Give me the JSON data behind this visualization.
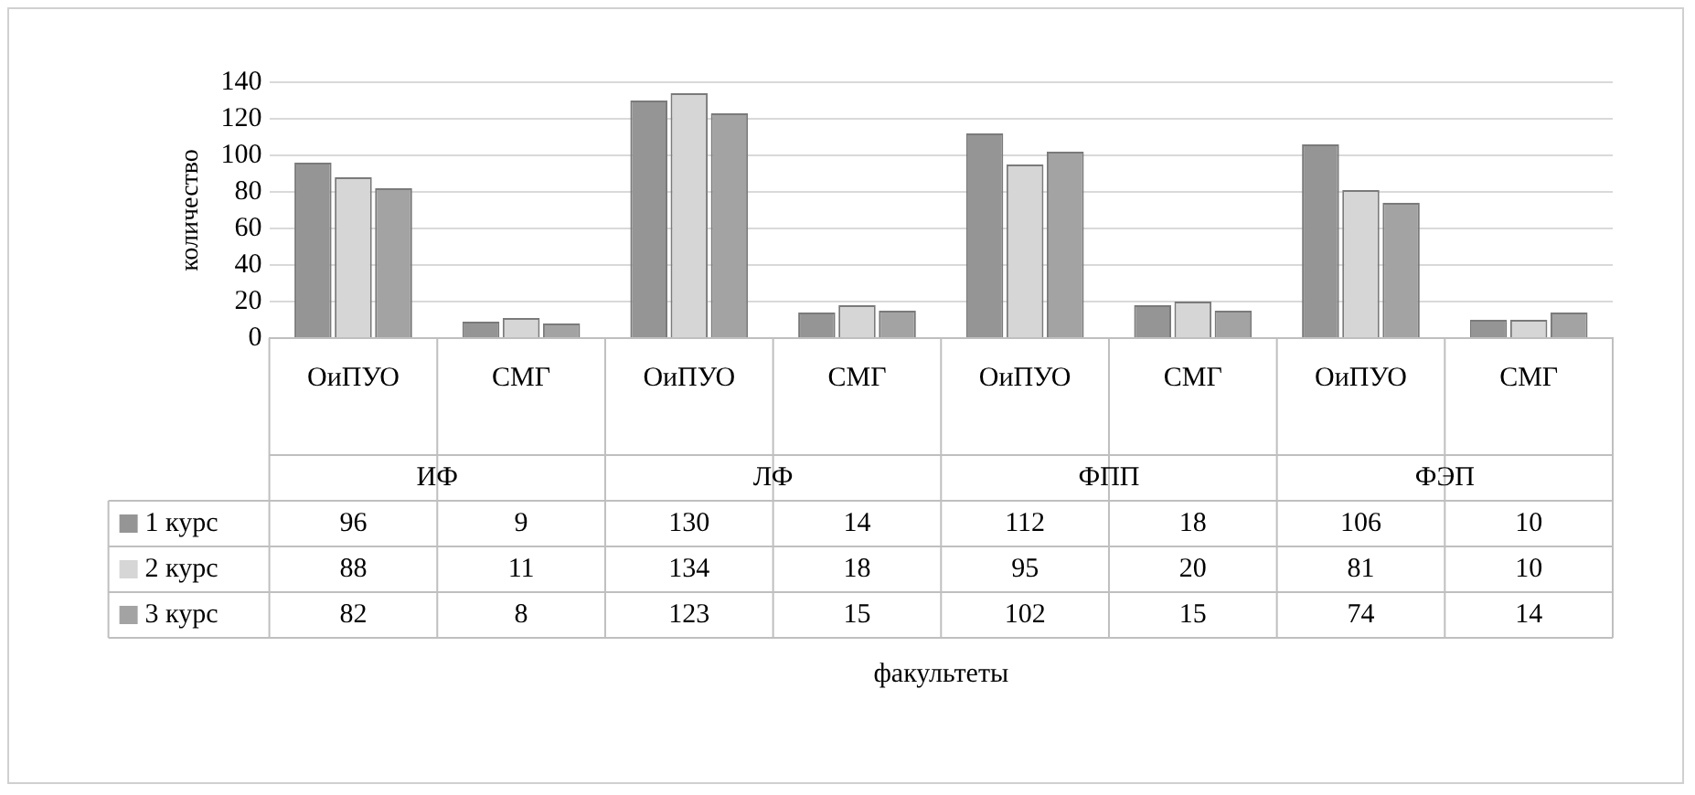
{
  "chart_data": {
    "type": "bar",
    "ylabel": "количество",
    "categories": [
      "ОиПУО",
      "СМГ",
      "ОиПУО",
      "СМГ",
      "ОиПУО",
      "СМГ",
      "ОиПУО",
      "СМГ"
    ],
    "annotations": [
      "ИФ",
      "ЛФ",
      "ФПП",
      "ФЭП",
      "факультеты"
    ],
    "series": [
      {
        "name": "1 курс",
        "color": "#959595",
        "values": [
          96,
          9,
          130,
          14,
          112,
          18,
          106,
          10
        ]
      },
      {
        "name": "2 курс",
        "color": "#d6d6d6",
        "values": [
          88,
          11,
          134,
          18,
          95,
          20,
          81,
          10
        ]
      },
      {
        "name": "3 курс",
        "color": "#a3a3a3",
        "values": [
          82,
          8,
          123,
          15,
          102,
          15,
          74,
          14
        ]
      }
    ],
    "ylim": [
      0,
      140
    ],
    "yticks": [
      0,
      20,
      40,
      60,
      80,
      100,
      120,
      140
    ],
    "grid": "y",
    "legend": "bottom",
    "data_labels": true
  }
}
